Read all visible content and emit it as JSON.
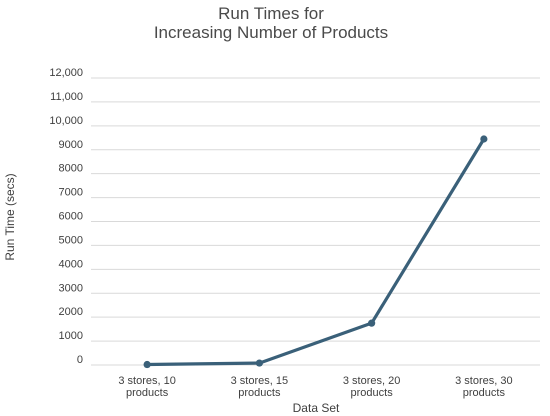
{
  "chart_data": {
    "type": "line",
    "title_lines": [
      "Run Times for",
      "Increasing Number of Products"
    ],
    "xlabel": "Data Set",
    "ylabel": "Run Time (secs)",
    "categories": [
      [
        "3 stores, 10",
        "products"
      ],
      [
        "3 stores, 15",
        "products"
      ],
      [
        "3 stores, 20",
        "products"
      ],
      [
        "3 stores, 30",
        "products"
      ]
    ],
    "values": [
      20,
      80,
      1750,
      9450
    ],
    "ylim": [
      0,
      12000
    ],
    "yticks": [
      0,
      1000,
      2000,
      3000,
      4000,
      5000,
      6000,
      7000,
      8000,
      9000,
      10000,
      11000,
      12000
    ],
    "ytick_labels": [
      "0",
      "1000",
      "2000",
      "3000",
      "4000",
      "5000",
      "6000",
      "7000",
      "8000",
      "9000",
      "10,000",
      "11,000",
      "12,000"
    ],
    "grid": true,
    "line_color": "#3a6079"
  }
}
